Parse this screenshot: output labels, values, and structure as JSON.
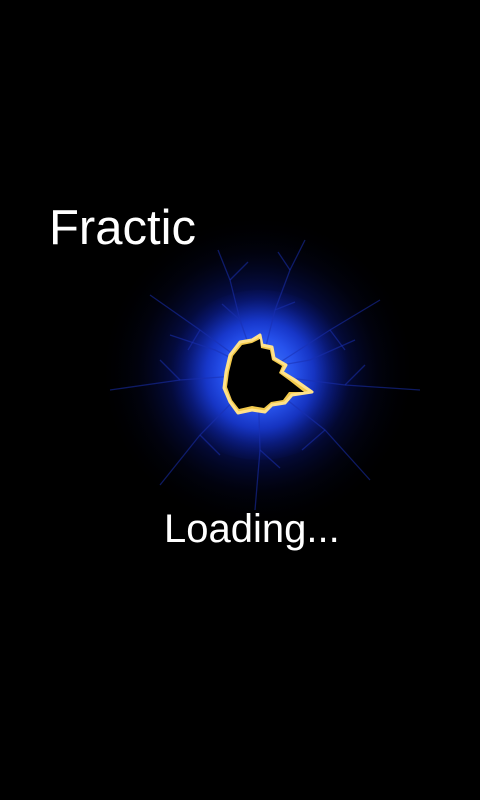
{
  "splash": {
    "app_title": "Fractic",
    "loading_text": "Loading...",
    "background_color": "#000000",
    "fractal_icon": "mandelbrot-fractal-icon",
    "fractal_colors": {
      "glow": "#1f4bff",
      "halo": "#f2c94c",
      "set": "#000000"
    }
  }
}
